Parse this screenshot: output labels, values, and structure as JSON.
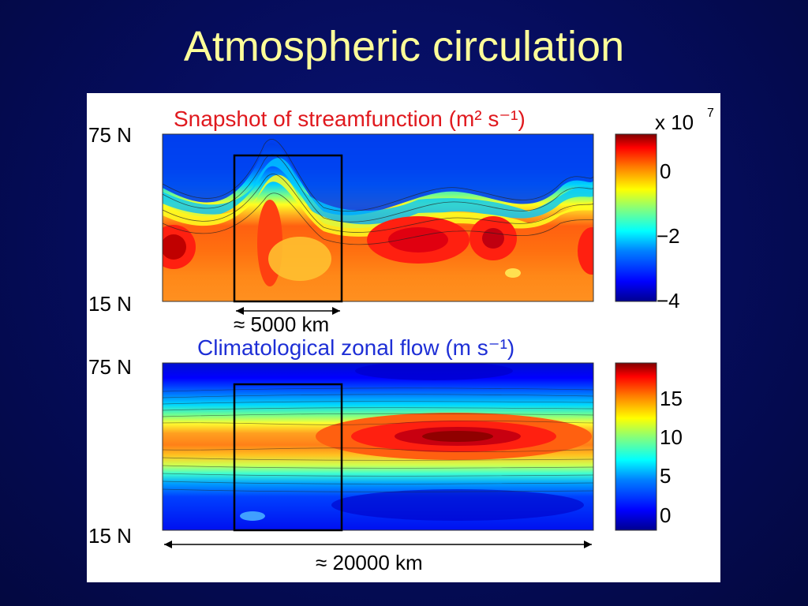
{
  "slide": {
    "title": "Atmospheric circulation"
  },
  "panels": {
    "top": {
      "title": "Snapshot of streamfunction (m² s⁻¹)",
      "title_color": "#e0191e",
      "y_top": "75 N",
      "y_bottom": "15 N",
      "colorbar": {
        "multiplier_base": "x 10",
        "multiplier_exp": "7",
        "ticks": [
          "0",
          "−2",
          "−4"
        ],
        "range": [
          -4,
          0.8
        ]
      },
      "scale_label": "≈ 5000 km"
    },
    "bottom": {
      "title": "Climatological zonal flow (m s⁻¹)",
      "title_color": "#1e2fd6",
      "y_top": "75 N",
      "y_bottom": "15 N",
      "colorbar": {
        "ticks": [
          "15",
          "10",
          "5",
          "0"
        ],
        "range": [
          -2,
          18
        ]
      },
      "scale_label": "≈ 20000 km"
    }
  },
  "colors": {
    "jet_ramp": [
      "#00008f",
      "#0000ff",
      "#0080ff",
      "#00ffff",
      "#80ff80",
      "#ffff00",
      "#ff8000",
      "#ff0000",
      "#800000"
    ],
    "slide_bg": "#050c5a",
    "title_text": "#ffff99"
  }
}
